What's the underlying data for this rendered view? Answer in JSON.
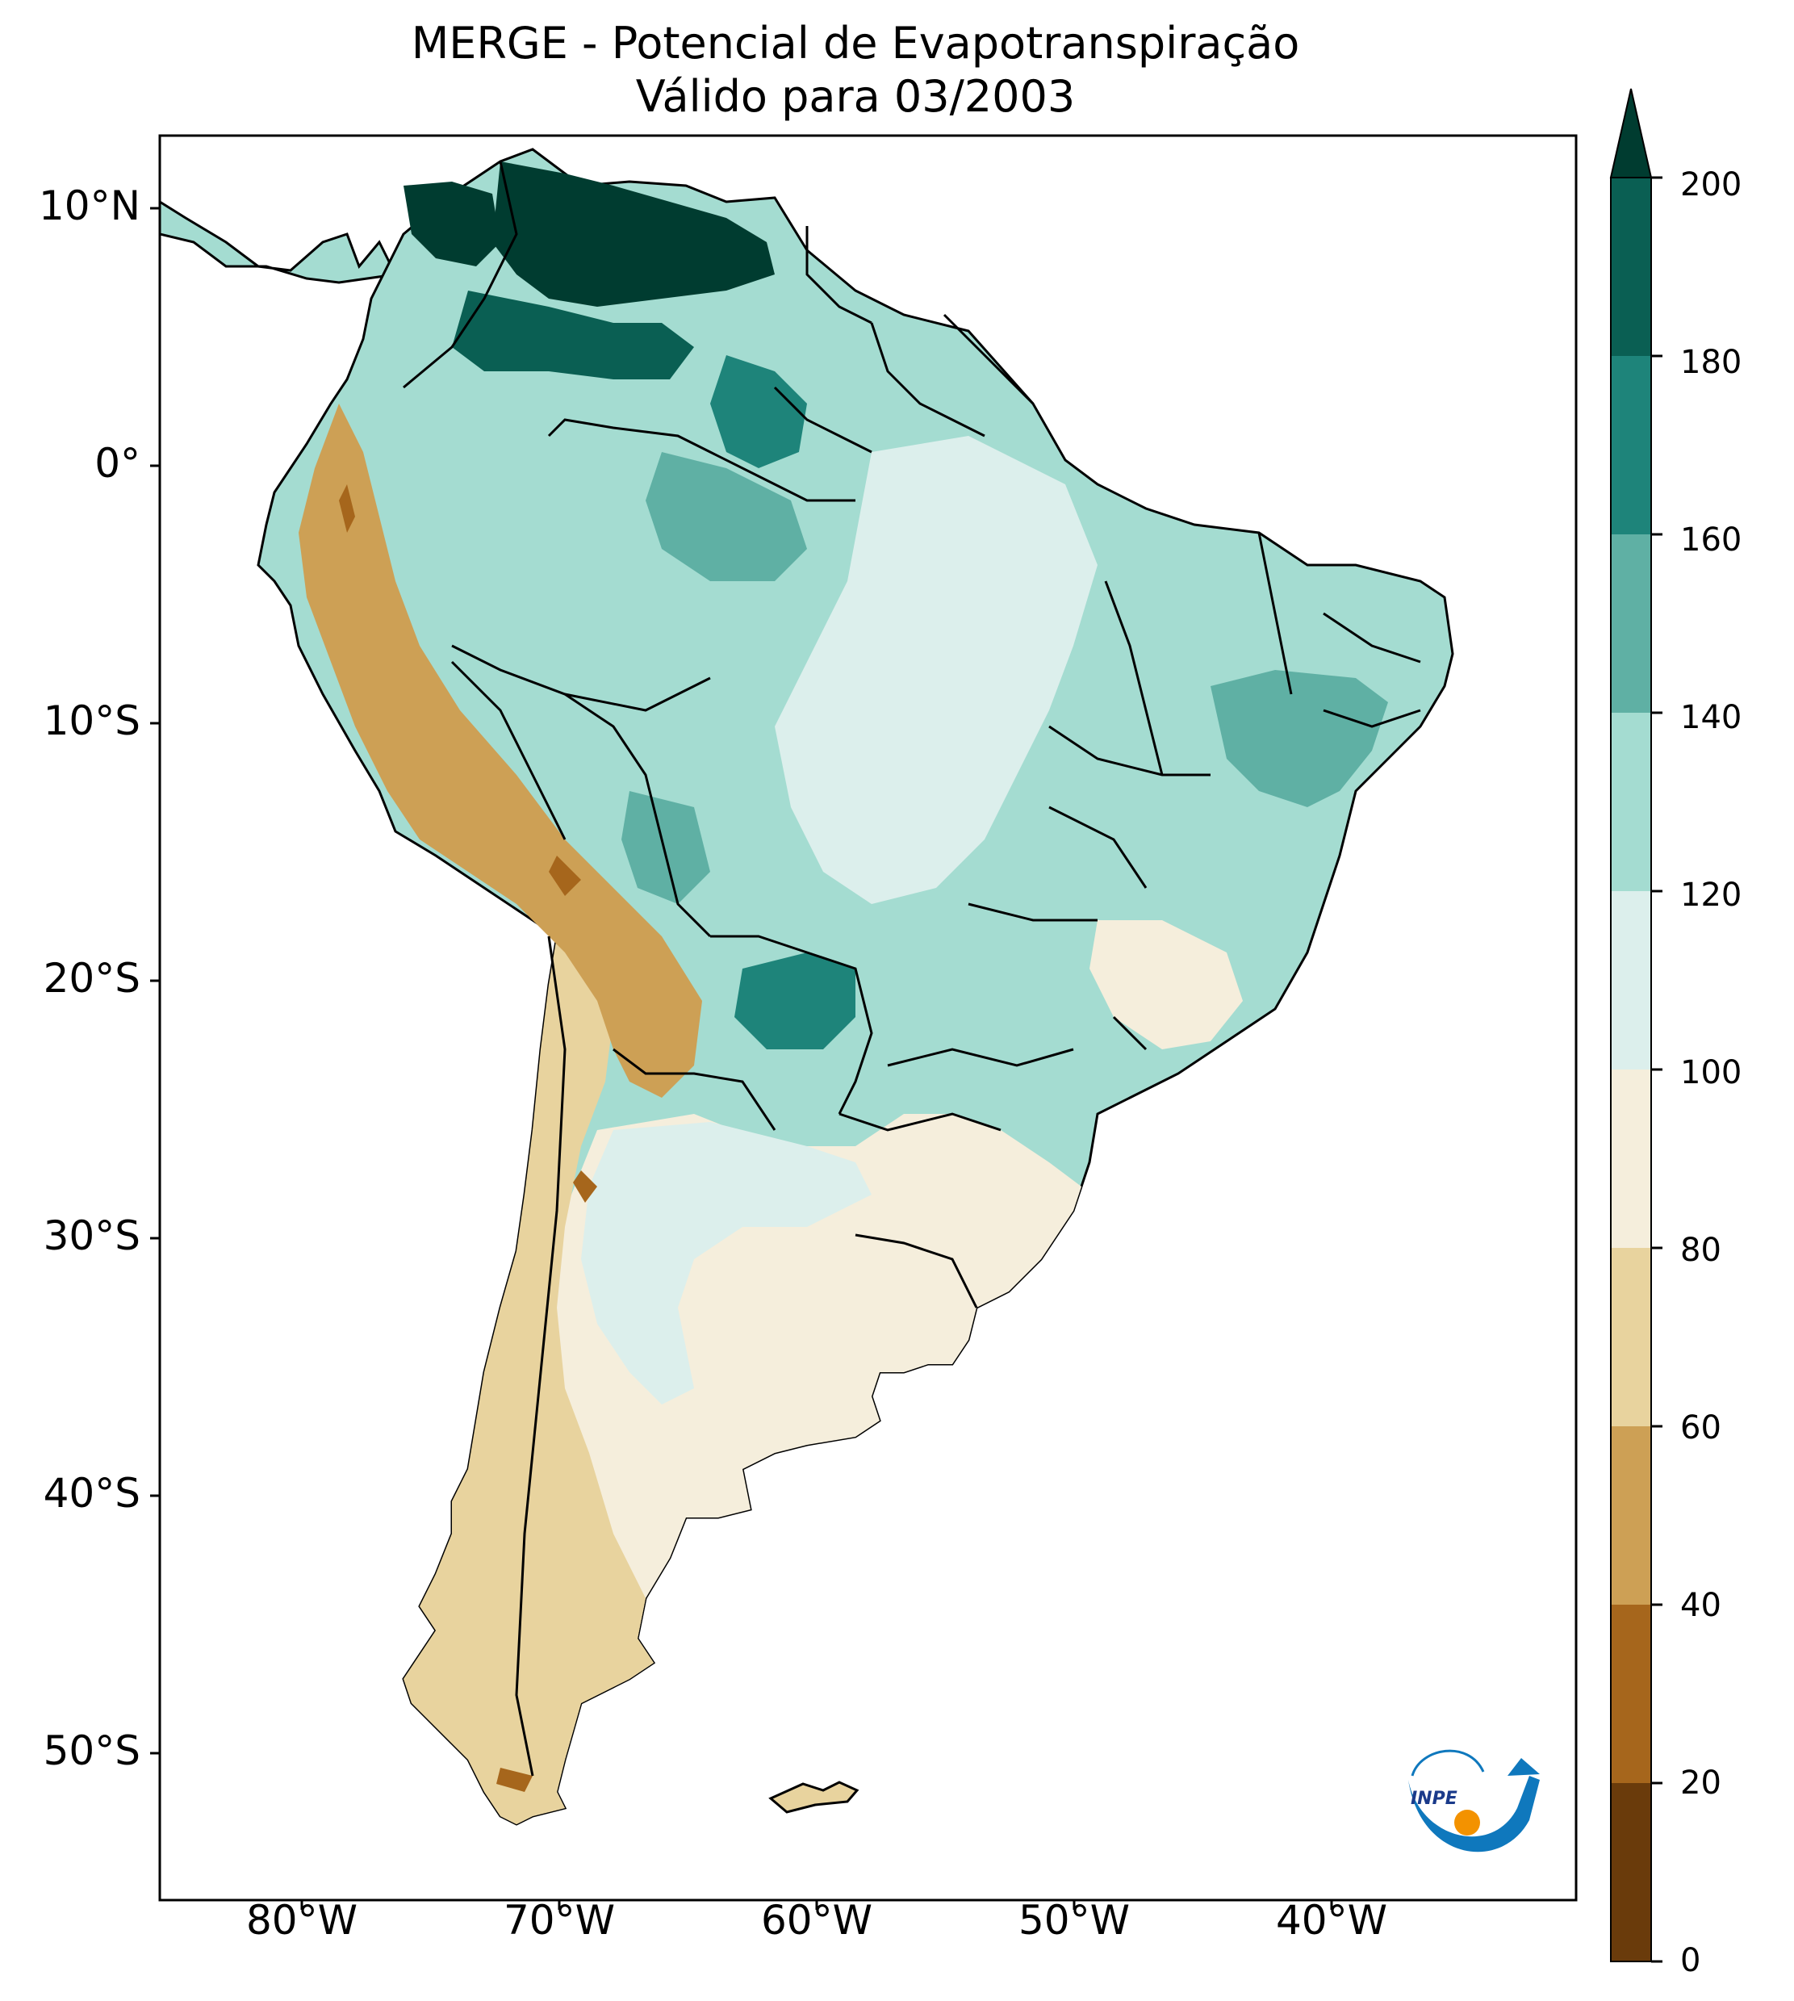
{
  "title": {
    "line1": "MERGE - Potencial de Evapotranspiração",
    "line2": "Válido para 03/2003"
  },
  "axes": {
    "lat_labels": [
      "10°N",
      "0°",
      "10°S",
      "20°S",
      "30°S",
      "40°S",
      "50°S"
    ],
    "lon_labels": [
      "80°W",
      "70°W",
      "60°W",
      "50°W",
      "40°W"
    ]
  },
  "colorbar": {
    "ticks": [
      "0",
      "20",
      "40",
      "60",
      "80",
      "100",
      "120",
      "140",
      "160",
      "180",
      "200"
    ],
    "colors": [
      "#6a3b0b",
      "#a6661c",
      "#cda055",
      "#e8d39e",
      "#f5eedc",
      "#dcefec",
      "#a4dcd1",
      "#5fb0a4",
      "#1e847a",
      "#0a5f53"
    ],
    "extend_color": "#003c30",
    "extend": "max"
  },
  "chart_data": {
    "type": "heatmap",
    "title": "MERGE - Potencial de Evapotranspiração",
    "subtitle": "Válido para 03/2003",
    "variable": "Potencial de Evapotranspiração",
    "lon_range": [
      -85,
      -30
    ],
    "lat_range": [
      -56,
      13
    ],
    "levels": [
      0,
      20,
      40,
      60,
      80,
      100,
      120,
      140,
      160,
      180,
      200
    ],
    "regions": [
      {
        "area": "Northern Venezuela / Caribbean coast",
        "approx_value": 180
      },
      {
        "area": "Amazon basin",
        "approx_value": 130
      },
      {
        "area": "Central Brazil",
        "approx_value": 110
      },
      {
        "area": "Northeast Brazil coast",
        "approx_value": 150
      },
      {
        "area": "Andes (Peru, Bolivia)",
        "approx_value": 50
      },
      {
        "area": "Chaco / Paraguay",
        "approx_value": 150
      },
      {
        "area": "Southern Brazil / Uruguay",
        "approx_value": 90
      },
      {
        "area": "Central Argentina",
        "approx_value": 100
      },
      {
        "area": "Patagonia / Chile",
        "approx_value": 70
      }
    ]
  },
  "logo": {
    "text": "INPE",
    "colors": {
      "blue": "#0f78bd",
      "orange": "#f39200"
    }
  }
}
